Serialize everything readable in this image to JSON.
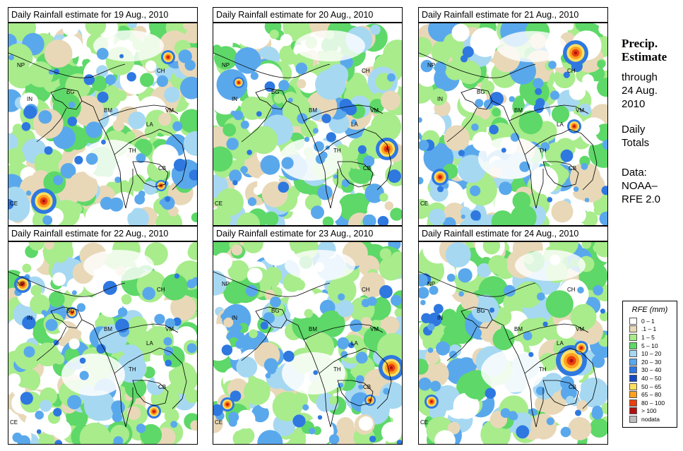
{
  "panels": [
    {
      "title": "Daily Rainfall estimate for  19 Aug., 2010",
      "date": "19 Aug., 2010"
    },
    {
      "title": "Daily Rainfall estimate for  20 Aug., 2010",
      "date": "20 Aug., 2010"
    },
    {
      "title": "Daily Rainfall estimate for  21 Aug., 2010",
      "date": "21 Aug., 2010"
    },
    {
      "title": "Daily Rainfall estimate for  22 Aug., 2010",
      "date": "22 Aug., 2010"
    },
    {
      "title": "Daily Rainfall estimate for  23 Aug., 2010",
      "date": "23 Aug., 2010"
    },
    {
      "title": "Daily Rainfall estimate for  24 Aug., 2010",
      "date": "24 Aug., 2010"
    }
  ],
  "country_labels": [
    "NP",
    "CH",
    "IN",
    "BG",
    "BM",
    "VM",
    "LA",
    "TH",
    "CB",
    "CE"
  ],
  "sidebar": {
    "title_line1": "Precip.",
    "title_line2": "Estimate",
    "through": "through",
    "date_line1": "24 Aug.",
    "date_line2": "2010",
    "period_line1": "Daily",
    "period_line2": "Totals",
    "source_line1": "Data:",
    "source_line2": "NOAA–",
    "source_line3": "RFE 2.0"
  },
  "legend": {
    "title": "RFE (mm)",
    "items": [
      {
        "label": "0 – 1",
        "color": "#ffffff"
      },
      {
        "label": ".1 – 1",
        "color": "#e8d8b8"
      },
      {
        "label": "1 – 5",
        "color": "#a8ec8c"
      },
      {
        "label": "5 – 10",
        "color": "#5ed868"
      },
      {
        "label": "10 – 20",
        "color": "#a6d8f2"
      },
      {
        "label": "20 – 30",
        "color": "#5aa8ec"
      },
      {
        "label": "30 – 40",
        "color": "#2e78e0"
      },
      {
        "label": "40 – 50",
        "color": "#1448c0"
      },
      {
        "label": "50 – 65",
        "color": "#ffe060"
      },
      {
        "label": "65 – 80",
        "color": "#ffa020"
      },
      {
        "label": "80 – 100",
        "color": "#e84010"
      },
      {
        "label": "> 100",
        "color": "#b01010"
      },
      {
        "label": "nodata",
        "color": "#bdbdbd"
      }
    ]
  }
}
